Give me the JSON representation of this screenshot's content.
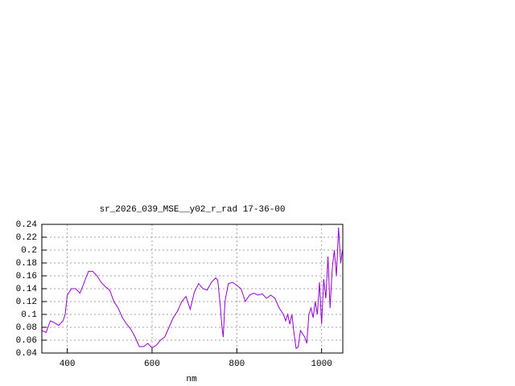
{
  "chart_data": {
    "type": "line",
    "title": "sr_2026_039_MSE__y02_r_rad 17-36-00",
    "x_label": "nm",
    "color": "#9400d3",
    "grid": true,
    "xlim": [
      340,
      1050
    ],
    "ylim": [
      0.04,
      0.24
    ],
    "xticks": [
      400,
      600,
      800,
      1000
    ],
    "yticks": [
      0.04,
      0.06,
      0.08,
      0.1,
      0.12,
      0.14,
      0.16,
      0.18,
      0.2,
      0.22,
      0.24
    ],
    "x": [
      340,
      350,
      360,
      370,
      380,
      390,
      395,
      400,
      410,
      420,
      430,
      440,
      450,
      460,
      470,
      480,
      490,
      500,
      510,
      520,
      530,
      540,
      550,
      560,
      570,
      580,
      590,
      600,
      610,
      620,
      630,
      640,
      650,
      660,
      670,
      680,
      690,
      700,
      710,
      720,
      730,
      740,
      750,
      755,
      760,
      765,
      768,
      772,
      780,
      790,
      800,
      810,
      820,
      830,
      840,
      850,
      860,
      870,
      880,
      890,
      900,
      910,
      915,
      920,
      925,
      930,
      935,
      940,
      945,
      950,
      955,
      960,
      965,
      970,
      975,
      980,
      985,
      990,
      995,
      1000,
      1005,
      1010,
      1015,
      1020,
      1025,
      1030,
      1035,
      1040,
      1045,
      1049
    ],
    "values": [
      0.075,
      0.072,
      0.09,
      0.087,
      0.083,
      0.09,
      0.1,
      0.13,
      0.14,
      0.14,
      0.133,
      0.15,
      0.167,
      0.167,
      0.16,
      0.15,
      0.143,
      0.138,
      0.12,
      0.11,
      0.095,
      0.085,
      0.077,
      0.065,
      0.05,
      0.05,
      0.055,
      0.048,
      0.052,
      0.06,
      0.065,
      0.08,
      0.095,
      0.105,
      0.12,
      0.128,
      0.108,
      0.135,
      0.148,
      0.14,
      0.138,
      0.15,
      0.157,
      0.153,
      0.12,
      0.08,
      0.065,
      0.12,
      0.148,
      0.15,
      0.145,
      0.14,
      0.12,
      0.13,
      0.133,
      0.13,
      0.132,
      0.125,
      0.13,
      0.125,
      0.11,
      0.1,
      0.09,
      0.1,
      0.085,
      0.1,
      0.07,
      0.047,
      0.05,
      0.075,
      0.07,
      0.065,
      0.055,
      0.1,
      0.11,
      0.095,
      0.12,
      0.1,
      0.15,
      0.085,
      0.155,
      0.125,
      0.19,
      0.11,
      0.17,
      0.2,
      0.16,
      0.235,
      0.18,
      0.2
    ]
  }
}
